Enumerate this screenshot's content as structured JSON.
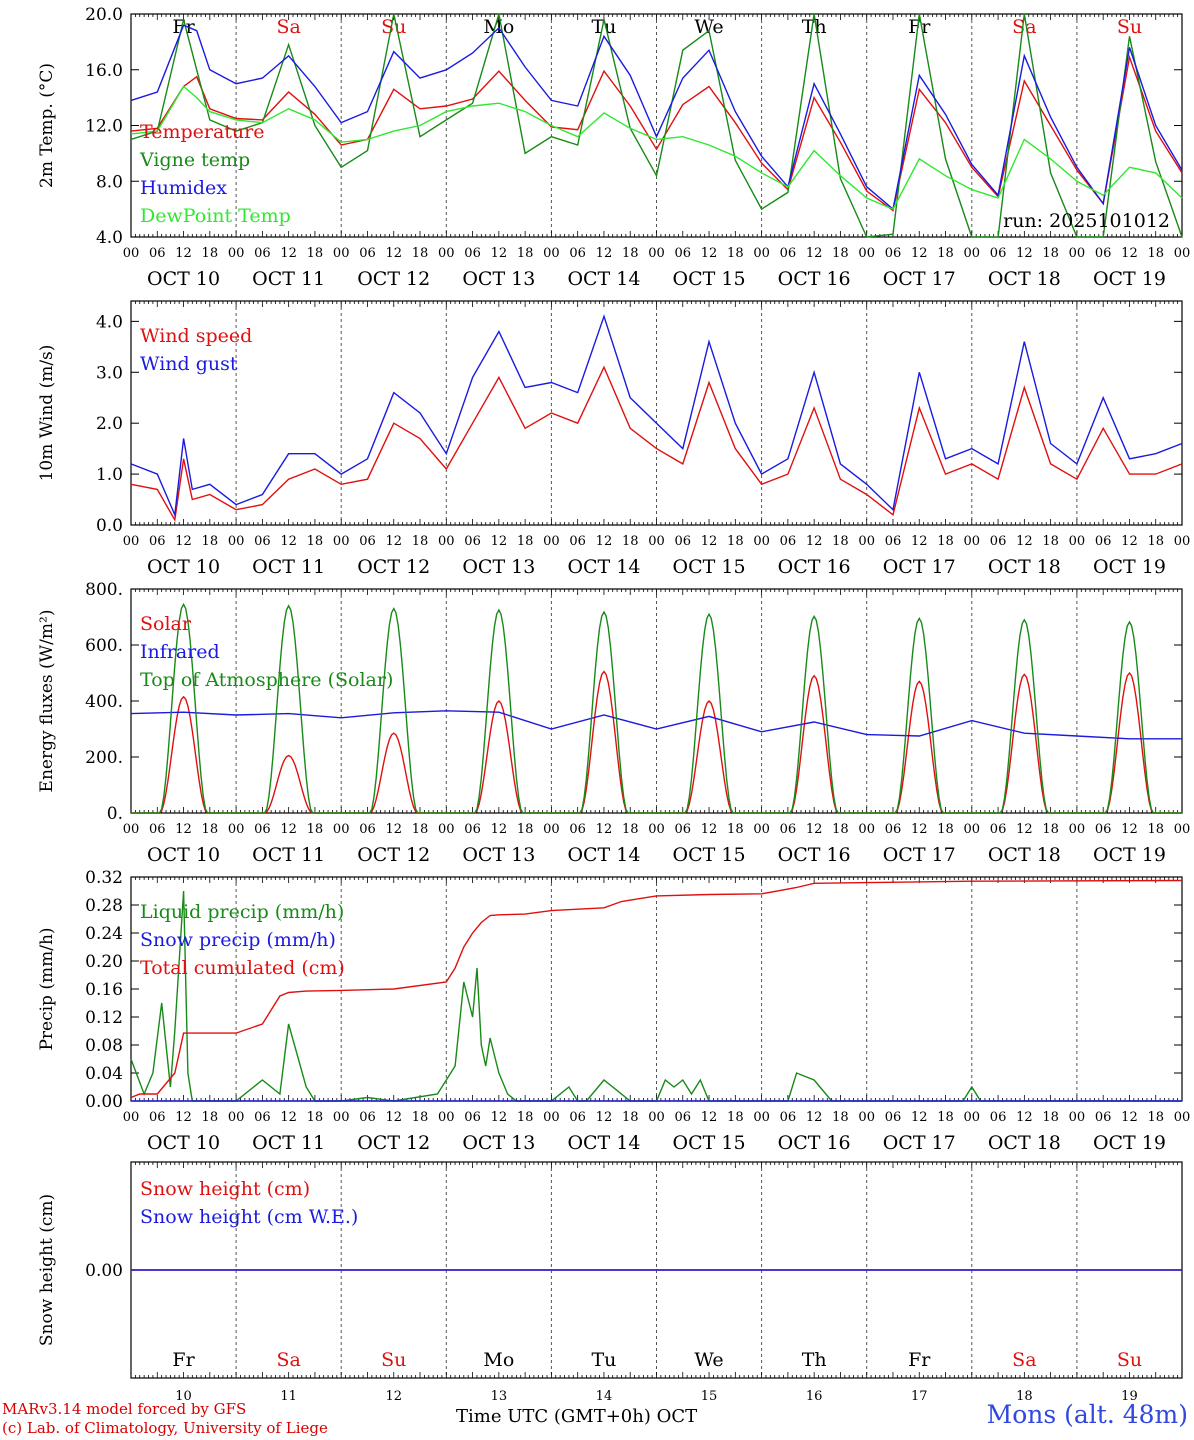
{
  "days": [
    "OCT 10",
    "OCT 11",
    "OCT 12",
    "OCT 13",
    "OCT 14",
    "OCT 15",
    "OCT 16",
    "OCT 17",
    "OCT 18",
    "OCT 19"
  ],
  "weekdays": [
    "Fr",
    "Sa",
    "Su",
    "Mo",
    "Tu",
    "We",
    "Th",
    "Fr",
    "Sa",
    "Su"
  ],
  "weekday_colors": [
    "#000000",
    "#e01010",
    "#e01010",
    "#000000",
    "#000000",
    "#000000",
    "#000000",
    "#000000",
    "#e01010",
    "#e01010"
  ],
  "day_numbers": [
    "10",
    "11",
    "12",
    "13",
    "14",
    "15",
    "16",
    "17",
    "18",
    "19"
  ],
  "hour_ticks": [
    "00",
    "06",
    "12",
    "18"
  ],
  "hour_tick_last": "00",
  "run_label": "run: 2025101012",
  "x_title": "Time UTC (GMT+0h)",
  "x_month": "OCT",
  "credit_line1": "MARv3.14 model forced by GFS",
  "credit_line2": "(c) Lab. of Climatology, University of Liege",
  "station": "Mons (alt. 48m)",
  "colors": {
    "red": "#e01010",
    "green": "#188a18",
    "blue": "#1a1ae0",
    "lightgreen": "#30e830",
    "grid": "#555555"
  },
  "chart_data": [
    {
      "type": "line",
      "ylabel": "2m Temp. (°C)",
      "ylim": [
        4,
        20
      ],
      "ytick_values": [
        4,
        8,
        12,
        16,
        20
      ],
      "ytick_labels": [
        "4.0",
        "8.0",
        "12.0",
        "16.0",
        "20.0"
      ],
      "x_unit": "hours since 2025-10-10 00 UTC",
      "show_weekdays": true,
      "show_run": true,
      "series": [
        {
          "name": "Temperature",
          "color": "red",
          "x": [
            0,
            6,
            12,
            15,
            18,
            24,
            30,
            36,
            42,
            48,
            54,
            60,
            66,
            72,
            78,
            84,
            90,
            96,
            102,
            108,
            114,
            120,
            126,
            132,
            138,
            144,
            150,
            156,
            162,
            168,
            174,
            180,
            186,
            192,
            198,
            204,
            210,
            216,
            222,
            228,
            234,
            240
          ],
          "values": [
            11.6,
            11.8,
            14.8,
            15.5,
            13.2,
            12.5,
            12.4,
            14.4,
            12.8,
            10.6,
            11.0,
            14.6,
            13.2,
            13.4,
            13.9,
            15.9,
            13.8,
            11.9,
            11.7,
            15.9,
            13.4,
            10.3,
            13.5,
            14.8,
            12.2,
            9.3,
            7.4,
            14.0,
            10.8,
            7.3,
            5.9,
            14.6,
            12.2,
            9.0,
            6.9,
            15.2,
            12.0,
            8.8,
            6.4,
            16.9,
            11.6,
            8.6
          ]
        },
        {
          "name": "Vigne temp",
          "color": "green",
          "x": [
            0,
            6,
            12,
            15,
            18,
            24,
            30,
            36,
            42,
            48,
            54,
            60,
            66,
            72,
            78,
            84,
            90,
            96,
            102,
            108,
            114,
            120,
            126,
            132,
            138,
            144,
            150,
            156,
            162,
            168,
            174,
            180,
            186,
            192,
            198,
            204,
            210,
            216,
            222,
            228,
            234,
            240
          ],
          "values": [
            11.0,
            11.6,
            19.6,
            16.0,
            12.4,
            11.6,
            12.2,
            17.8,
            12.0,
            9.0,
            10.2,
            20.0,
            11.2,
            12.4,
            13.6,
            20.2,
            10.0,
            11.2,
            10.6,
            19.6,
            11.8,
            8.4,
            17.4,
            18.8,
            9.5,
            6.0,
            7.2,
            20.0,
            8.2,
            4.0,
            4.2,
            20.0,
            9.6,
            4.0,
            4.0,
            20.0,
            8.6,
            3.8,
            3.8,
            18.4,
            9.4,
            4.0
          ]
        },
        {
          "name": "Humidex",
          "color": "blue",
          "x": [
            0,
            6,
            12,
            15,
            18,
            24,
            30,
            36,
            42,
            48,
            54,
            60,
            66,
            72,
            78,
            84,
            90,
            96,
            102,
            108,
            114,
            120,
            126,
            132,
            138,
            144,
            150,
            156,
            162,
            168,
            174,
            180,
            186,
            192,
            198,
            204,
            210,
            216,
            222,
            228,
            234,
            240
          ],
          "values": [
            13.8,
            14.4,
            19.2,
            18.8,
            16.0,
            15.0,
            15.4,
            17.0,
            14.8,
            12.2,
            13.0,
            17.3,
            15.4,
            16.0,
            17.2,
            19.0,
            16.2,
            13.8,
            13.4,
            18.4,
            15.6,
            11.2,
            15.4,
            17.4,
            13.0,
            9.8,
            7.6,
            15.0,
            11.4,
            7.6,
            6.0,
            15.6,
            12.8,
            9.2,
            7.0,
            17.0,
            12.6,
            9.0,
            6.4,
            17.6,
            12.0,
            8.8
          ]
        },
        {
          "name": "DewPoint Temp",
          "color": "lightgreen",
          "x": [
            0,
            6,
            12,
            15,
            18,
            24,
            30,
            36,
            42,
            48,
            54,
            60,
            66,
            72,
            78,
            84,
            90,
            96,
            102,
            108,
            114,
            120,
            126,
            132,
            138,
            144,
            150,
            156,
            162,
            168,
            174,
            180,
            186,
            192,
            198,
            204,
            210,
            216,
            222,
            228,
            234,
            240
          ],
          "values": [
            11.4,
            11.6,
            14.8,
            14.0,
            13.0,
            12.4,
            12.2,
            13.2,
            12.4,
            10.8,
            11.0,
            11.6,
            12.0,
            13.0,
            13.4,
            13.6,
            13.0,
            12.0,
            11.2,
            12.9,
            11.8,
            11.0,
            11.2,
            10.6,
            9.8,
            8.6,
            7.6,
            10.2,
            8.4,
            6.8,
            6.0,
            9.6,
            8.4,
            7.4,
            6.8,
            11.0,
            9.6,
            8.0,
            7.0,
            9.0,
            8.6,
            6.8
          ]
        }
      ]
    },
    {
      "type": "line",
      "ylabel": "10m Wind (m/s)",
      "ylim": [
        0,
        4.4
      ],
      "ytick_values": [
        0,
        1,
        2,
        3,
        4
      ],
      "ytick_labels": [
        "0.0",
        "1.0",
        "2.0",
        "3.0",
        "4.0"
      ],
      "x_unit": "hours since 2025-10-10 00 UTC",
      "series": [
        {
          "name": "Wind speed",
          "color": "red",
          "x": [
            0,
            6,
            10,
            12,
            14,
            18,
            24,
            30,
            36,
            42,
            48,
            54,
            60,
            66,
            72,
            78,
            84,
            90,
            96,
            102,
            108,
            114,
            120,
            126,
            132,
            138,
            144,
            150,
            156,
            162,
            168,
            174,
            180,
            186,
            192,
            198,
            204,
            210,
            216,
            222,
            228,
            234,
            240
          ],
          "values": [
            0.8,
            0.7,
            0.1,
            1.3,
            0.5,
            0.6,
            0.3,
            0.4,
            0.9,
            1.1,
            0.8,
            0.9,
            2.0,
            1.7,
            1.1,
            2.0,
            2.9,
            1.9,
            2.2,
            2.0,
            3.1,
            1.9,
            1.5,
            1.2,
            2.8,
            1.5,
            0.8,
            1.0,
            2.3,
            0.9,
            0.6,
            0.2,
            2.3,
            1.0,
            1.2,
            0.9,
            2.7,
            1.2,
            0.9,
            1.9,
            1.0,
            1.0,
            1.2
          ]
        },
        {
          "name": "Wind gust",
          "color": "blue",
          "x": [
            0,
            6,
            10,
            12,
            14,
            18,
            24,
            30,
            36,
            42,
            48,
            54,
            60,
            66,
            72,
            78,
            84,
            90,
            96,
            102,
            108,
            114,
            120,
            126,
            132,
            138,
            144,
            150,
            156,
            162,
            168,
            174,
            180,
            186,
            192,
            198,
            204,
            210,
            216,
            222,
            228,
            234,
            240
          ],
          "values": [
            1.2,
            1.0,
            0.2,
            1.7,
            0.7,
            0.8,
            0.4,
            0.6,
            1.4,
            1.4,
            1.0,
            1.3,
            2.6,
            2.2,
            1.4,
            2.9,
            3.8,
            2.7,
            2.8,
            2.6,
            4.1,
            2.5,
            2.0,
            1.5,
            3.6,
            2.0,
            1.0,
            1.3,
            3.0,
            1.2,
            0.8,
            0.3,
            3.0,
            1.3,
            1.5,
            1.2,
            3.6,
            1.6,
            1.2,
            2.5,
            1.3,
            1.4,
            1.6
          ]
        }
      ]
    },
    {
      "type": "line",
      "ylabel": "Energy fluxes (W/m²)",
      "ylim": [
        0,
        800
      ],
      "ytick_values": [
        0,
        200,
        400,
        600,
        800
      ],
      "ytick_labels": [
        "0.",
        "200.",
        "400.",
        "600.",
        "800."
      ],
      "x_unit": "hours since 2025-10-10 00 UTC",
      "daylight": {
        "sunrise_hour": 6.5,
        "sunset_hour": 17.5
      },
      "series": [
        {
          "name": "Solar",
          "color": "red",
          "daily_peak": [
            415,
            205,
            285,
            400,
            505,
            400,
            490,
            470,
            495,
            500
          ],
          "peak_hour": 13
        },
        {
          "name": "Infrared",
          "color": "blue",
          "x": [
            0,
            12,
            24,
            36,
            48,
            60,
            72,
            84,
            96,
            108,
            120,
            132,
            144,
            156,
            168,
            180,
            192,
            204,
            216,
            228,
            240
          ],
          "values": [
            355,
            360,
            350,
            355,
            340,
            358,
            365,
            360,
            300,
            350,
            300,
            345,
            290,
            325,
            280,
            275,
            330,
            285,
            275,
            265,
            265
          ]
        },
        {
          "name": "Top of Atmosphere (Solar)",
          "color": "green",
          "daily_peak": [
            745,
            740,
            730,
            725,
            718,
            710,
            702,
            695,
            690,
            682
          ],
          "peak_hour": 12
        }
      ]
    },
    {
      "type": "line",
      "ylabel": "Precip (mm/h)",
      "ylim": [
        0,
        0.32
      ],
      "ytick_values": [
        0,
        0.04,
        0.08,
        0.12,
        0.16,
        0.2,
        0.24,
        0.28,
        0.32
      ],
      "ytick_labels": [
        "0.00",
        "0.04",
        "0.08",
        "0.12",
        "0.16",
        "0.20",
        "0.24",
        "0.28",
        "0.32"
      ],
      "x_unit": "hours since 2025-10-10 00 UTC",
      "series": [
        {
          "name": "Liquid precip (mm/h)",
          "color": "green",
          "x": [
            0,
            3,
            5,
            7,
            9,
            10,
            12,
            13,
            14,
            16,
            24,
            30,
            34,
            36,
            40,
            42,
            48,
            54,
            60,
            70,
            72,
            74,
            76,
            78,
            79,
            80,
            81,
            82,
            84,
            86,
            88,
            90,
            96,
            100,
            102,
            104,
            108,
            114,
            120,
            122,
            124,
            126,
            128,
            130,
            132,
            136,
            144,
            150,
            152,
            156,
            160,
            168,
            190,
            192,
            194,
            198,
            240
          ],
          "values": [
            0.06,
            0.01,
            0.04,
            0.14,
            0.02,
            0.1,
            0.3,
            0.04,
            0.0,
            0.0,
            0.0,
            0.03,
            0.01,
            0.11,
            0.02,
            0.0,
            0.0,
            0.005,
            0.0,
            0.01,
            0.03,
            0.05,
            0.17,
            0.12,
            0.19,
            0.08,
            0.05,
            0.09,
            0.04,
            0.01,
            0.0,
            0.0,
            0.0,
            0.02,
            0.0,
            0.0,
            0.03,
            0.0,
            0.0,
            0.03,
            0.02,
            0.03,
            0.01,
            0.03,
            0.0,
            0.0,
            0.0,
            0.0,
            0.04,
            0.03,
            0.0,
            0.0,
            0.0,
            0.02,
            0.0,
            0.0,
            0.0
          ]
        },
        {
          "name": "Snow precip (mm/h)",
          "color": "blue",
          "x": [
            0,
            240
          ],
          "values": [
            0,
            0
          ]
        },
        {
          "name": "Total cumulated (cm)",
          "color": "red",
          "x": [
            0,
            2,
            6,
            10,
            12,
            18,
            24,
            30,
            34,
            36,
            40,
            48,
            60,
            72,
            74,
            76,
            78,
            80,
            82,
            84,
            90,
            96,
            108,
            112,
            120,
            132,
            144,
            152,
            156,
            168,
            192,
            240
          ],
          "values": [
            0.005,
            0.01,
            0.01,
            0.04,
            0.097,
            0.097,
            0.097,
            0.11,
            0.15,
            0.155,
            0.157,
            0.158,
            0.16,
            0.17,
            0.19,
            0.22,
            0.24,
            0.255,
            0.265,
            0.266,
            0.267,
            0.272,
            0.276,
            0.285,
            0.293,
            0.295,
            0.296,
            0.305,
            0.311,
            0.312,
            0.314,
            0.315
          ]
        }
      ]
    },
    {
      "type": "line",
      "ylabel": "Snow height (cm)",
      "ylim": [
        -1,
        1
      ],
      "ytick_values": [
        0
      ],
      "ytick_labels": [
        "0.00"
      ],
      "x_unit": "hours since 2025-10-10 00 UTC",
      "show_bottom_weekdays": true,
      "series": [
        {
          "name": "Snow height (cm)",
          "color": "red",
          "x": [
            0,
            240
          ],
          "values": [
            0,
            0
          ]
        },
        {
          "name": "Snow height (cm W.E.)",
          "color": "blue",
          "x": [
            0,
            240
          ],
          "values": [
            0,
            0
          ]
        }
      ]
    }
  ]
}
